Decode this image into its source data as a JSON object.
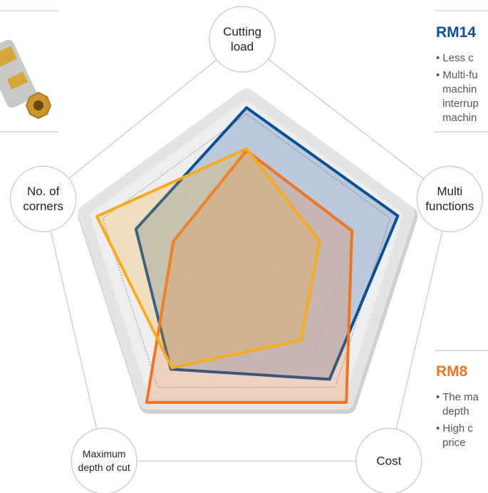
{
  "chart_data": {
    "type": "radar",
    "categories": [
      "Cutting load",
      "Multi functions",
      "Cost",
      "Maximum depth of cut",
      "No. of corners"
    ],
    "rlim": [
      0,
      10
    ],
    "grid": true,
    "series": [
      {
        "color": "#0b4f96",
        "values": [
          8.8,
          8.9,
          7.9,
          7.2,
          6.5
        ]
      },
      {
        "color": "#ef7424",
        "values": [
          6.4,
          6.2,
          9.5,
          9.5,
          4.3
        ]
      },
      {
        "color": "#f5ab1f",
        "values": [
          6.5,
          4.3,
          5.2,
          7.1,
          8.8
        ]
      }
    ]
  },
  "panels": [
    {
      "title": "RM14",
      "lines": [
        "• Less c",
        "• Multi-fu",
        "machin",
        "interrup",
        "machin"
      ]
    },
    {
      "title": "RM8",
      "lines": [
        "• The ma",
        "depth",
        "• High c",
        "price"
      ]
    }
  ]
}
